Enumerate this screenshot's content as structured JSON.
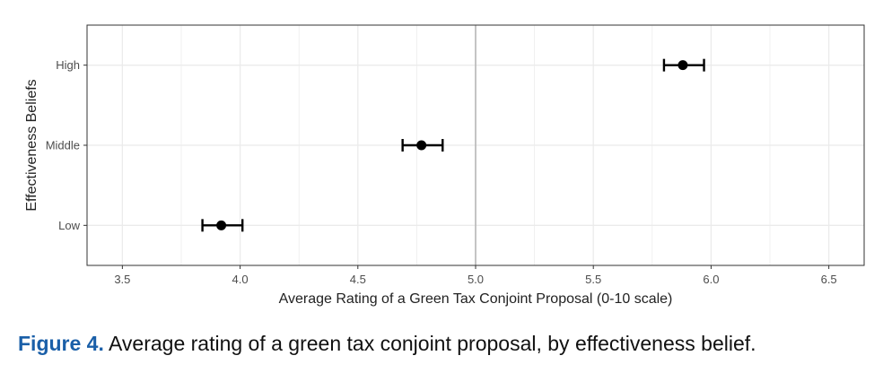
{
  "chart_data": {
    "type": "scatter",
    "title": "",
    "xlabel": "Average Rating of a Green Tax Conjoint Proposal (0-10 scale)",
    "ylabel": "Effectiveness Beliefs",
    "xlim": [
      3.35,
      6.65
    ],
    "xticks": [
      "3.5",
      "4.0",
      "4.5",
      "5.0",
      "5.5",
      "6.0",
      "6.5"
    ],
    "xtick_values": [
      3.5,
      4.0,
      4.5,
      5.0,
      5.5,
      6.0,
      6.5
    ],
    "reference_line_x": 5.0,
    "categories": [
      "High",
      "Middle",
      "Low"
    ],
    "points": [
      {
        "label": "High",
        "value": 5.88,
        "lower": 5.8,
        "upper": 5.97
      },
      {
        "label": "Middle",
        "value": 4.77,
        "lower": 4.69,
        "upper": 4.86
      },
      {
        "label": "Low",
        "value": 3.92,
        "lower": 3.84,
        "upper": 4.01
      }
    ],
    "grid": true,
    "colors": {
      "marker": "#000000",
      "grid": "#ebebeb",
      "reference": "#b3b3b3"
    }
  },
  "caption": {
    "figure_label": "Figure 4.",
    "text": " Average rating of a green tax conjoint proposal, by effectiveness belief."
  }
}
